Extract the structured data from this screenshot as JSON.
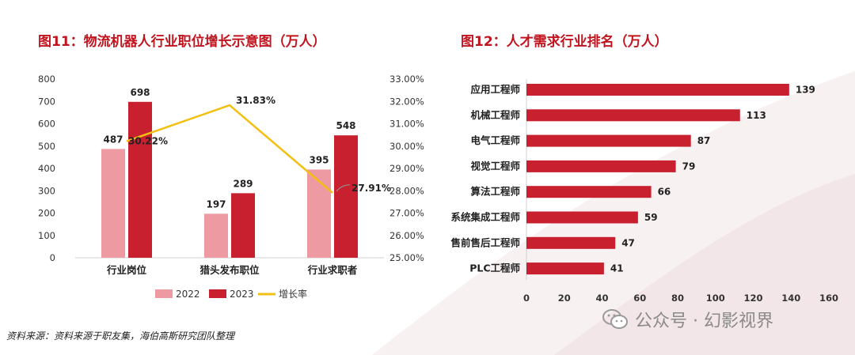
{
  "source_note": "资料来源：资料来源于职友集，海伯高斯研究团队整理",
  "watermark": "公众号 · 幻影视界",
  "colors": {
    "title": "#c0141f",
    "bar2022": "#ee9aa2",
    "bar2023": "#c8202f",
    "growth_line": "#f2c012",
    "hbar": "#c8202f",
    "swoosh": "#f6eef0"
  },
  "chart_data": [
    {
      "type": "bar",
      "title": "图11：物流机器人行业职位增长示意图（万人）",
      "categories": [
        "行业岗位",
        "猎头发布职位",
        "行业求职者"
      ],
      "series": [
        {
          "name": "2022",
          "values": [
            487,
            197,
            395
          ]
        },
        {
          "name": "2023",
          "values": [
            698,
            289,
            548
          ]
        }
      ],
      "line_series": {
        "name": "增长率",
        "values": [
          30.22,
          31.83,
          27.91
        ],
        "labels": [
          "30.22%",
          "31.83%",
          "27.91%"
        ]
      },
      "ylim": [
        0,
        800
      ],
      "y_ticks": [
        "0",
        "100",
        "200",
        "300",
        "400",
        "500",
        "600",
        "700",
        "800"
      ],
      "y2lim": [
        25.0,
        33.0
      ],
      "y2_ticks": [
        "25.00%",
        "26.00%",
        "27.00%",
        "28.00%",
        "29.00%",
        "30.00%",
        "31.00%",
        "32.00%",
        "33.00%"
      ],
      "legend": "bottom",
      "grid": false
    },
    {
      "type": "bar",
      "orientation": "horizontal",
      "title": "图12：人才需求行业排名（万人）",
      "categories": [
        "应用工程师",
        "机械工程师",
        "电气工程师",
        "视觉工程师",
        "算法工程师",
        "系统集成工程师",
        "售前售后工程师",
        "PLC工程师"
      ],
      "values": [
        139,
        113,
        87,
        79,
        66,
        59,
        47,
        41
      ],
      "xlim": [
        0,
        160
      ],
      "x_ticks": [
        "0",
        "20",
        "40",
        "60",
        "80",
        "100",
        "120",
        "140",
        "160"
      ],
      "grid": false
    }
  ]
}
